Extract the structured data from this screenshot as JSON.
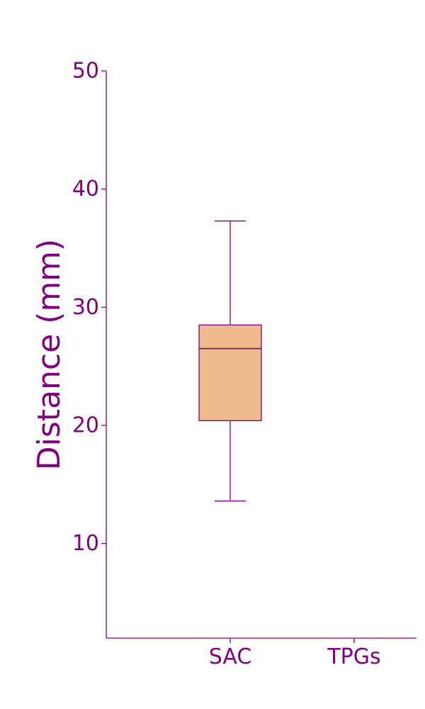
{
  "chart_data": {
    "type": "box",
    "title": "",
    "xlabel": "",
    "ylabel": "Distance (mm)",
    "categories": [
      "SAC",
      "TPGs"
    ],
    "boxes": [
      {
        "category": "SAC",
        "whisker_low": 13.6,
        "q1": 20.4,
        "median": 26.5,
        "q3": 28.5,
        "whisker_high": 37.3,
        "fill": "#edba8c"
      }
    ],
    "yticks": [
      10,
      20,
      30,
      40,
      50
    ],
    "ytick_labels": [
      "10",
      "20",
      "30",
      "40",
      "50"
    ],
    "ylim": [
      2,
      50
    ],
    "grid": false,
    "colors": {
      "axis": "#800080",
      "box_edge": "#800080",
      "box_fill": "#edba8c"
    }
  }
}
